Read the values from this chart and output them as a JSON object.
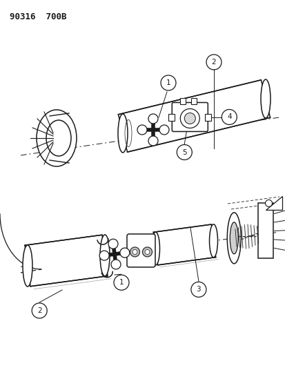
{
  "title": "90316  700B",
  "bg_color": "#ffffff",
  "lc": "#1a1a1a",
  "fig_w": 4.14,
  "fig_h": 5.33,
  "dpi": 100,
  "labels": [
    "1",
    "2",
    "3",
    "4",
    "5"
  ]
}
